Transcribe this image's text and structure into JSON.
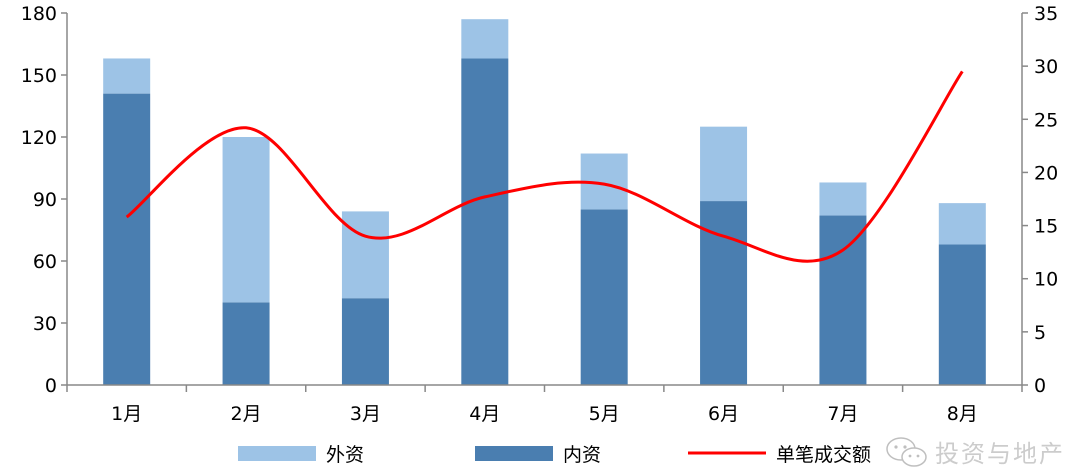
{
  "chart_data": {
    "type": "bar",
    "categories": [
      "1月",
      "2月",
      "3月",
      "4月",
      "5月",
      "6月",
      "7月",
      "8月"
    ],
    "series": [
      {
        "name": "内资",
        "type": "bar",
        "axis": "left",
        "color": "#4A7EB0",
        "values": [
          141,
          40,
          42,
          158,
          85,
          89,
          82,
          68
        ]
      },
      {
        "name": "外资",
        "type": "bar",
        "axis": "left",
        "color": "#9DC3E6",
        "values": [
          17,
          80,
          42,
          19,
          27,
          36,
          16,
          20
        ]
      },
      {
        "name": "单笔成交额",
        "type": "line",
        "axis": "right",
        "color": "#FF0000",
        "smooth": true,
        "values": [
          15.8,
          24.2,
          14.0,
          17.7,
          18.9,
          14.0,
          12.7,
          29.5
        ]
      }
    ],
    "stacked": true,
    "ylim": [
      0,
      180
    ],
    "yticks": [
      0,
      30,
      60,
      90,
      120,
      150,
      180
    ],
    "y2lim": [
      0,
      35
    ],
    "y2ticks": [
      0,
      5,
      10,
      15,
      20,
      25,
      30,
      35
    ],
    "legend": {
      "placement": "bottom",
      "order": [
        "外资",
        "内资",
        "单笔成交额"
      ]
    },
    "grid": false
  },
  "watermark": {
    "text": "投资与地产",
    "icon": "wechat-icon"
  }
}
